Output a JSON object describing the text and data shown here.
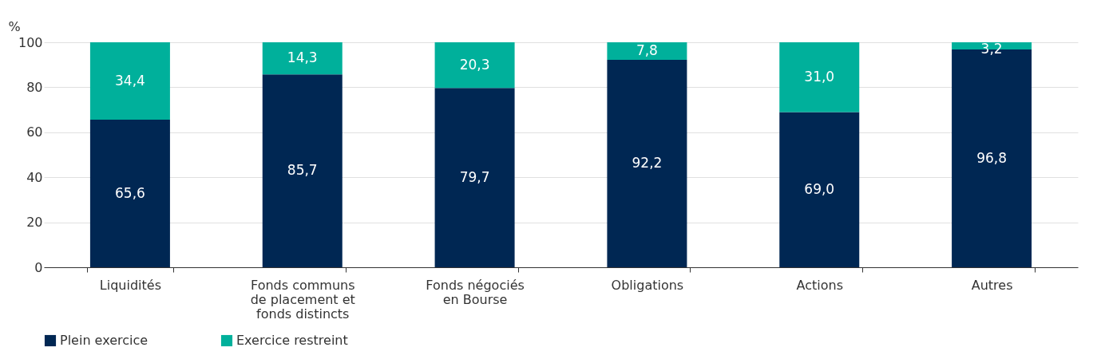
{
  "chart_data": {
    "type": "bar",
    "stacked": true,
    "ylabel": "%",
    "categories": [
      "Liquidités",
      "Fonds communs de placement et fonds distincts",
      "Fonds négociés en Bourse",
      "Obligations",
      "Actions",
      "Autres"
    ],
    "series": [
      {
        "name": "Plein exercice",
        "color": "#002753",
        "values": [
          65.6,
          85.7,
          79.7,
          92.2,
          69.0,
          96.8
        ],
        "value_labels": [
          "65,6",
          "85,7",
          "79,7",
          "92,2",
          "69,0",
          "96,8"
        ]
      },
      {
        "name": "Exercice restreint",
        "color": "#00b09b",
        "values": [
          34.4,
          14.3,
          20.3,
          7.8,
          31.0,
          3.2
        ],
        "value_labels": [
          "34,4",
          "14,3",
          "20,3",
          "7,8",
          "31,0",
          "3,2"
        ]
      }
    ],
    "ylim": [
      0,
      100
    ],
    "yticks": [
      0,
      20,
      40,
      60,
      80,
      100
    ],
    "grid": "y",
    "legend": "bottom"
  }
}
